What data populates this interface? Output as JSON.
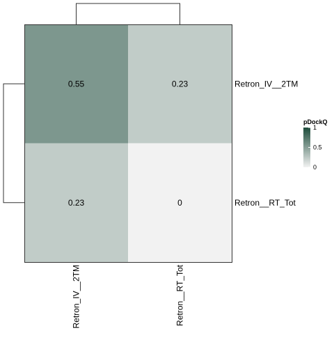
{
  "chart_data": {
    "type": "heatmap",
    "title": "",
    "xlabel": "",
    "ylabel": "",
    "rows": [
      "Retron_IV__2TM",
      "Retron__RT_Tot"
    ],
    "columns": [
      "Retron_IV__2TM",
      "Retron__RT_Tot"
    ],
    "values": [
      [
        0.55,
        0.23
      ],
      [
        0.23,
        0
      ]
    ],
    "cell_labels": [
      [
        "0.55",
        "0.23"
      ],
      [
        "0.23",
        "0"
      ]
    ],
    "color_scale": {
      "title": "pDockQ",
      "min": 0,
      "max": 1,
      "colors": [
        "#f2f2f2",
        "#1e4d3c"
      ],
      "ticks": [
        1,
        0.5,
        0
      ],
      "tick_labels": [
        "1",
        "0.5",
        "0"
      ],
      "legend_position": "right"
    },
    "row_dendrogram": true,
    "column_dendrogram": true,
    "grid": false
  }
}
